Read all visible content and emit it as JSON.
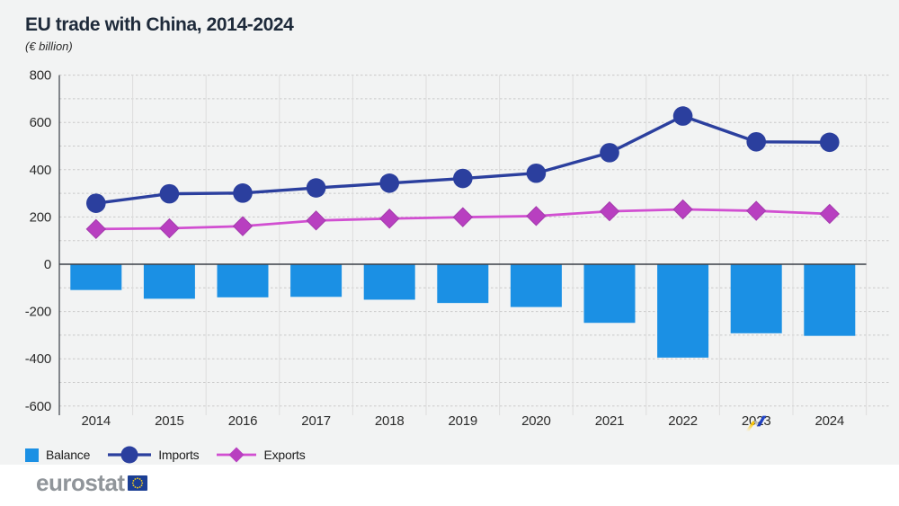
{
  "header": {
    "title": "EU trade with China, 2014-2024",
    "subtitle": "(€ billion)"
  },
  "legend": {
    "balance_label": "Balance",
    "imports_label": "Imports",
    "exports_label": "Exports"
  },
  "footer": {
    "logo_text": "eurostat"
  },
  "colors": {
    "canvas_bg": "#f2f3f3",
    "balance_bar": "#1b90e4",
    "imports_line": "#2b3f9e",
    "exports_line": "#d14fd1",
    "exports_marker": "#b83fc0",
    "grid_dashed": "#c9c9c9",
    "grid_vertical": "#dddddd",
    "zero_axis": "#3a3f47",
    "axis_text": "#2b2b2b",
    "title_text": "#1e2a3a",
    "eurostat_gray": "#90959a",
    "eu_flag_blue": "#1b3e94",
    "eu_flag_stars": "#ffd617",
    "ribbon_yellow": "#fec800",
    "ribbon_gray": "#a9abae",
    "ribbon_blue": "#2145c5"
  },
  "chart_data": {
    "type": "bar+line combo",
    "title": "EU trade with China, 2014-2024",
    "ylabel": "(€ billion)",
    "categories": [
      "2014",
      "2015",
      "2016",
      "2017",
      "2018",
      "2019",
      "2020",
      "2021",
      "2022",
      "2023",
      "2024"
    ],
    "series": [
      {
        "name": "Balance",
        "type": "bar",
        "marker": "square",
        "values": [
          -109,
          -146,
          -140,
          -138,
          -150,
          -164,
          -181,
          -248,
          -395,
          -292,
          -303
        ]
      },
      {
        "name": "Imports",
        "type": "line",
        "marker": "circle",
        "values": [
          258,
          298,
          301,
          323,
          343,
          363,
          385,
          472,
          627,
          518,
          516
        ]
      },
      {
        "name": "Exports",
        "type": "line",
        "marker": "diamond",
        "values": [
          149,
          152,
          161,
          185,
          193,
          199,
          204,
          224,
          232,
          226,
          213
        ]
      }
    ],
    "ylim": [
      -600,
      800
    ],
    "ytick_step": 200,
    "minor_grid_step": 100,
    "grid": true,
    "legend_position": "bottom-left"
  }
}
